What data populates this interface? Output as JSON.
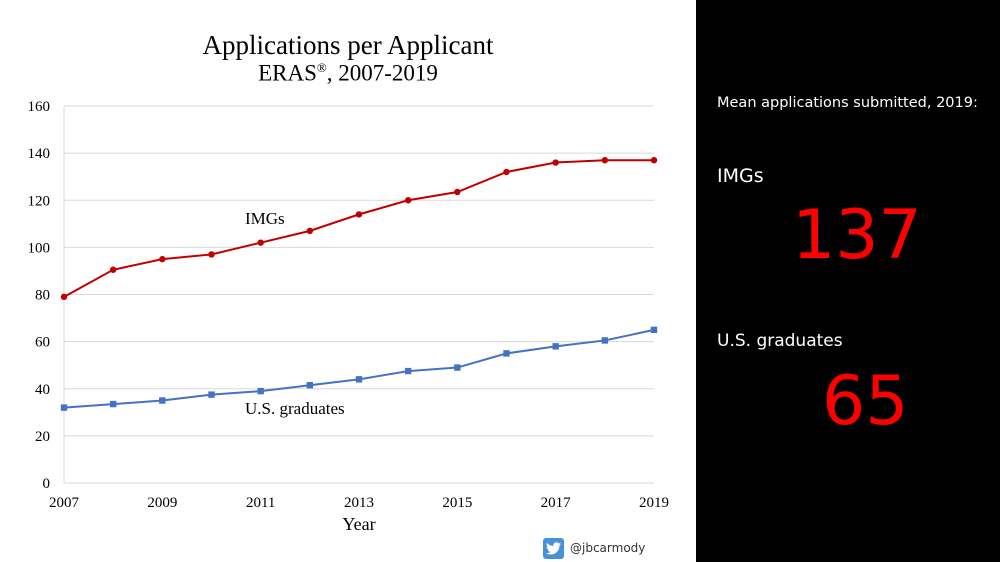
{
  "chart_data": {
    "type": "line",
    "title": "Applications per Applicant",
    "subtitle_main": "ERAS",
    "subtitle_mark": "®",
    "subtitle_rest": ", 2007-2019",
    "xlabel": "Year",
    "ylabel": "",
    "x": [
      2007,
      2008,
      2009,
      2010,
      2011,
      2012,
      2013,
      2014,
      2015,
      2016,
      2017,
      2018,
      2019
    ],
    "xlim": [
      2007,
      2019
    ],
    "ylim": [
      0,
      160
    ],
    "x_ticks": [
      "2007",
      "2009",
      "2011",
      "2013",
      "2015",
      "2017",
      "2019"
    ],
    "y_ticks": [
      "0",
      "20",
      "40",
      "60",
      "80",
      "100",
      "120",
      "140",
      "160"
    ],
    "grid": "horizontal",
    "legend": "none (inline labels)",
    "series": [
      {
        "name": "IMGs",
        "color": "#c00000",
        "marker": "circle",
        "values": [
          79,
          90.5,
          95,
          97,
          102,
          107,
          114,
          120,
          123.5,
          132,
          136,
          137,
          137
        ]
      },
      {
        "name": "U.S. graduates",
        "color": "#4472c4",
        "marker": "square",
        "values": [
          32,
          33.5,
          35,
          37.5,
          39,
          41.5,
          44,
          47.5,
          49,
          55,
          58,
          60.5,
          65
        ]
      }
    ]
  },
  "twitter": {
    "icon": "twitter-bird-icon",
    "handle": "@jbcarmody",
    "color": "#4a90d9"
  },
  "panel": {
    "heading": "Mean applications submitted, 2019:",
    "img_label": "IMGs",
    "img_value": "137",
    "us_label": "U.S. graduates",
    "us_value": "65",
    "value_color": "#ff0000"
  }
}
